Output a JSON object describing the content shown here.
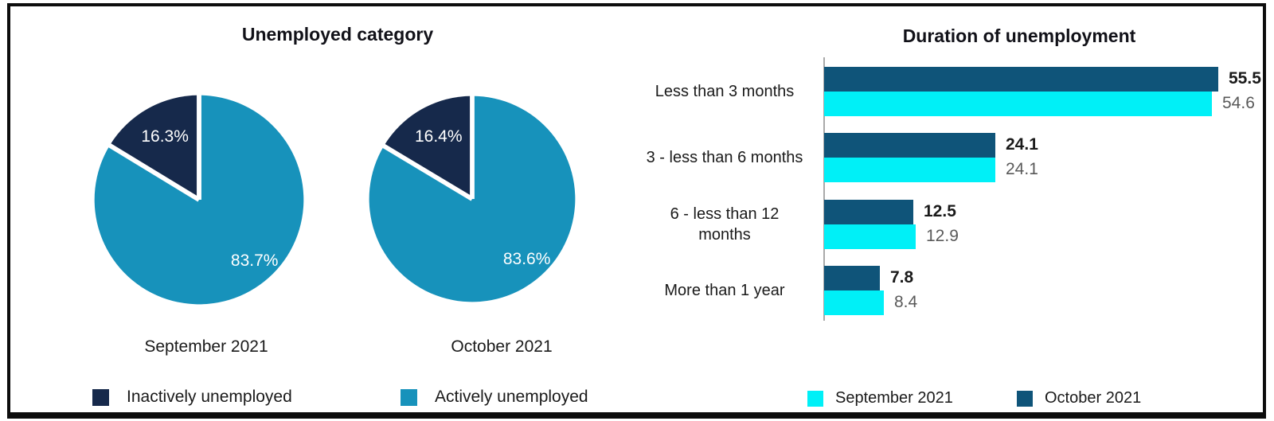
{
  "chart_data": [
    {
      "id": "unemployed-category",
      "type": "pie",
      "title": "Unemployed category",
      "pies": [
        {
          "label": "September 2021",
          "slices": [
            {
              "name": "Inactively unemployed",
              "value": 16.3,
              "display": "16.3%"
            },
            {
              "name": "Actively unemployed",
              "value": 83.7,
              "display": "83.7%"
            }
          ]
        },
        {
          "label": "October 2021",
          "slices": [
            {
              "name": "Inactively unemployed",
              "value": 16.4,
              "display": "16.4%"
            },
            {
              "name": "Actively unemployed",
              "value": 83.6,
              "display": "83.6%"
            }
          ]
        }
      ],
      "colors": {
        "Inactively unemployed": "#16294B",
        "Actively unemployed": "#1792BB"
      },
      "slice_label_color": "#FFFFFF",
      "legend_position": "bottom",
      "legend": [
        {
          "label": "Inactively unemployed",
          "color": "#16294B"
        },
        {
          "label": "Actively unemployed",
          "color": "#1792BB"
        }
      ]
    },
    {
      "id": "duration-of-unemployment",
      "type": "bar",
      "orientation": "horizontal",
      "title": "Duration of unemployment",
      "categories": [
        "Less than 3 months",
        "3 - less than 6 months",
        "6 - less than 12\nmonths",
        "More than 1 year"
      ],
      "series": [
        {
          "name": "October 2021",
          "color": "#0F5479",
          "values": [
            55.5,
            24.1,
            12.5,
            7.8
          ],
          "labels": [
            "55.5",
            "24.1",
            "12.5",
            "7.8"
          ],
          "label_color": "#1A1A1A",
          "label_bold": true
        },
        {
          "name": "September 2021",
          "color": "#00F0F7",
          "values": [
            54.6,
            24.1,
            12.9,
            8.4
          ],
          "labels": [
            "54.6",
            "24.1",
            "12.9",
            "8.4"
          ],
          "label_color": "#595959",
          "label_bold": false
        }
      ],
      "xlim": [
        0,
        57
      ],
      "grid": false,
      "axis_color": "#A9A9A9",
      "legend_position": "bottom",
      "legend": [
        {
          "label": "September 2021",
          "color": "#00F0F7"
        },
        {
          "label": "October 2021",
          "color": "#0F5479"
        }
      ]
    }
  ]
}
